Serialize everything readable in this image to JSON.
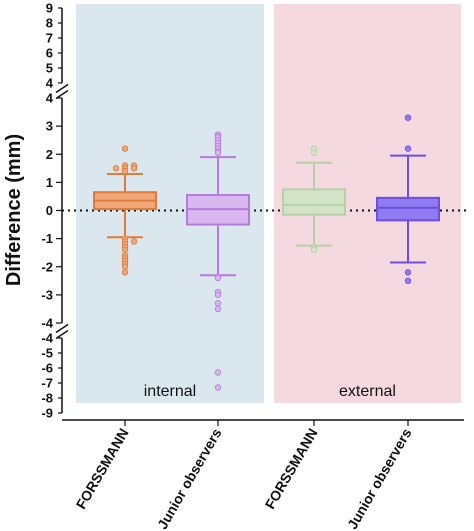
{
  "chart_data": {
    "type": "box",
    "ylabel": "Difference (mm)",
    "y_axis_break": true,
    "ylim": [
      -9,
      9
    ],
    "yticks": {
      "top": [
        "9",
        "8",
        "7",
        "6",
        "5",
        "4"
      ],
      "middle": [
        "4",
        "3",
        "2",
        "1",
        "0",
        "-1",
        "-2",
        "-3",
        "-4"
      ],
      "bottom": [
        "-4",
        "-5",
        "-6",
        "-7",
        "-8",
        "-9"
      ]
    },
    "reference_line": 0,
    "panels": [
      {
        "label": "internal",
        "color": "#dbe7ee"
      },
      {
        "label": "external",
        "color": "#f4d9e0"
      }
    ],
    "categories": [
      "FORSSMANN",
      "Junior observers",
      "FORSSMANN",
      "Junior observers"
    ],
    "boxes": [
      {
        "panel": "internal",
        "category": "FORSSMANN",
        "whisker_low": -0.95,
        "q1": 0.05,
        "median": 0.35,
        "q3": 0.65,
        "whisker_high": 1.3,
        "outliers": [
          2.2,
          1.6,
          1.6,
          1.5,
          1.5,
          1.5,
          1.4,
          -1.0,
          -1.1,
          -1.1,
          -1.2,
          -1.3,
          -1.4,
          -1.6,
          -1.7,
          -1.8,
          -1.9,
          -2.0,
          -2.2
        ],
        "color": "#e07b39",
        "fill": "#f0a878"
      },
      {
        "panel": "internal",
        "category": "Junior observers",
        "whisker_low": -2.3,
        "q1": -0.5,
        "median": 0.05,
        "q3": 0.55,
        "whisker_high": 1.9,
        "outliers": [
          2.7,
          2.65,
          2.6,
          2.5,
          2.4,
          2.3,
          2.2,
          2.1,
          2.05,
          -2.35,
          -2.4,
          -2.9,
          -3.0,
          -3.3,
          -3.5,
          -6.3,
          -7.3
        ],
        "color": "#b57bdc",
        "fill": "#d8b6ee"
      },
      {
        "panel": "external",
        "category": "FORSSMANN",
        "whisker_low": -1.25,
        "q1": -0.15,
        "median": 0.2,
        "q3": 0.75,
        "whisker_high": 1.7,
        "outliers": [
          2.2,
          2.05,
          -1.35,
          -1.4
        ],
        "color": "#b7d0a6",
        "fill": "#d3e3c8"
      },
      {
        "panel": "external",
        "category": "Junior observers",
        "whisker_low": -1.85,
        "q1": -0.35,
        "median": 0.1,
        "q3": 0.45,
        "whisker_high": 1.95,
        "outliers": [
          3.3,
          2.2,
          -2.2,
          -2.5
        ],
        "color": "#6d4ee0",
        "fill": "#8e7cf0"
      }
    ]
  }
}
